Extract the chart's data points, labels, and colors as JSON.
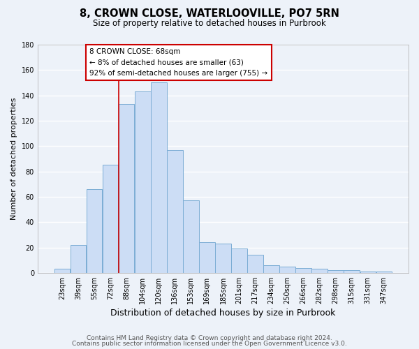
{
  "title": "8, CROWN CLOSE, WATERLOOVILLE, PO7 5RN",
  "subtitle": "Size of property relative to detached houses in Purbrook",
  "xlabel": "Distribution of detached houses by size in Purbrook",
  "ylabel": "Number of detached properties",
  "bar_labels": [
    "23sqm",
    "39sqm",
    "55sqm",
    "72sqm",
    "88sqm",
    "104sqm",
    "120sqm",
    "136sqm",
    "153sqm",
    "169sqm",
    "185sqm",
    "201sqm",
    "217sqm",
    "234sqm",
    "250sqm",
    "266sqm",
    "282sqm",
    "298sqm",
    "315sqm",
    "331sqm",
    "347sqm"
  ],
  "bar_values": [
    3,
    22,
    66,
    85,
    133,
    143,
    150,
    97,
    57,
    24,
    23,
    19,
    14,
    6,
    5,
    4,
    3,
    2,
    2,
    1,
    1
  ],
  "bar_color": "#ccddf5",
  "bar_edge_color": "#7badd4",
  "vline_x": 3.5,
  "vline_color": "#cc0000",
  "ylim": [
    0,
    180
  ],
  "yticks": [
    0,
    20,
    40,
    60,
    80,
    100,
    120,
    140,
    160,
    180
  ],
  "annotation_title": "8 CROWN CLOSE: 68sqm",
  "annotation_line1": "← 8% of detached houses are smaller (63)",
  "annotation_line2": "92% of semi-detached houses are larger (755) →",
  "footer_line1": "Contains HM Land Registry data © Crown copyright and database right 2024.",
  "footer_line2": "Contains public sector information licensed under the Open Government Licence v3.0.",
  "background_color": "#edf2f9",
  "grid_color": "white",
  "title_fontsize": 10.5,
  "subtitle_fontsize": 8.5,
  "xlabel_fontsize": 9,
  "ylabel_fontsize": 8,
  "tick_fontsize": 7,
  "annotation_fontsize": 7.5,
  "footer_fontsize": 6.5
}
